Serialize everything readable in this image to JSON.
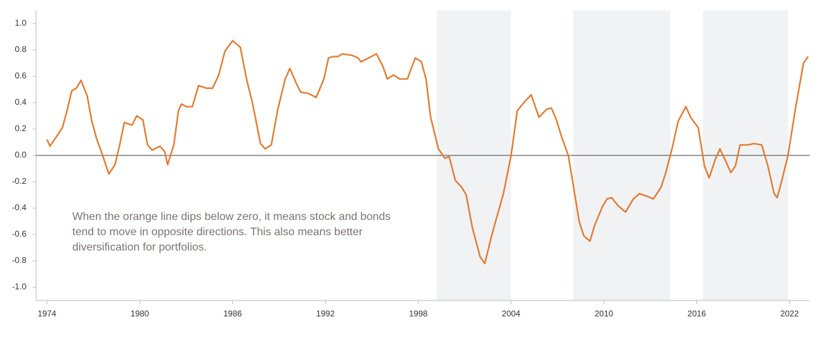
{
  "chart_data": {
    "type": "line",
    "x": [
      1974.0,
      1974.2,
      1975.0,
      1975.3,
      1975.6,
      1975.9,
      1976.2,
      1976.6,
      1976.9,
      1977.2,
      1977.6,
      1978.0,
      1978.4,
      1978.7,
      1979.0,
      1979.5,
      1979.8,
      1980.2,
      1980.5,
      1980.8,
      1981.3,
      1981.6,
      1981.8,
      1982.2,
      1982.5,
      1982.7,
      1983.0,
      1983.4,
      1983.8,
      1984.3,
      1984.7,
      1985.1,
      1985.5,
      1986.0,
      1986.5,
      1986.9,
      1987.3,
      1987.8,
      1988.1,
      1988.5,
      1988.9,
      1989.4,
      1989.7,
      1990.1,
      1990.4,
      1990.9,
      1991.4,
      1991.9,
      1992.2,
      1992.5,
      1992.8,
      1993.1,
      1993.7,
      1994.1,
      1994.3,
      1994.8,
      1995.3,
      1995.7,
      1996.0,
      1996.4,
      1996.8,
      1997.3,
      1997.8,
      1998.2,
      1998.5,
      1998.8,
      1999.3,
      1999.7,
      2000.0,
      2000.4,
      2000.8,
      2001.1,
      2001.5,
      2002.0,
      2002.3,
      2002.7,
      2003.0,
      2003.5,
      2004.0,
      2004.4,
      2004.9,
      2005.3,
      2005.8,
      2006.3,
      2006.6,
      2006.9,
      2007.3,
      2007.7,
      2008.0,
      2008.4,
      2008.7,
      2009.1,
      2009.4,
      2009.9,
      2010.2,
      2010.5,
      2010.9,
      2011.4,
      2011.9,
      2012.3,
      2012.8,
      2013.2,
      2013.7,
      2014.0,
      2014.4,
      2014.8,
      2015.3,
      2015.6,
      2016.1,
      2016.5,
      2016.8,
      2017.2,
      2017.5,
      2017.9,
      2018.2,
      2018.5,
      2018.8,
      2019.3,
      2019.7,
      2020.2,
      2020.6,
      2021.0,
      2021.2,
      2021.5,
      2021.9,
      2022.4,
      2022.9,
      2023.2
    ],
    "series": [
      {
        "color": "#e07a2f",
        "values": [
          0.12,
          0.07,
          0.21,
          0.34,
          0.49,
          0.51,
          0.57,
          0.45,
          0.26,
          0.13,
          0.0,
          -0.14,
          -0.07,
          0.08,
          0.25,
          0.23,
          0.3,
          0.27,
          0.08,
          0.04,
          0.07,
          0.03,
          -0.07,
          0.08,
          0.34,
          0.39,
          0.37,
          0.37,
          0.53,
          0.51,
          0.51,
          0.61,
          0.79,
          0.87,
          0.82,
          0.58,
          0.39,
          0.09,
          0.05,
          0.08,
          0.34,
          0.58,
          0.66,
          0.55,
          0.48,
          0.47,
          0.44,
          0.58,
          0.74,
          0.75,
          0.75,
          0.77,
          0.76,
          0.74,
          0.71,
          0.74,
          0.77,
          0.68,
          0.58,
          0.61,
          0.58,
          0.58,
          0.74,
          0.71,
          0.58,
          0.29,
          0.05,
          -0.02,
          -0.01,
          -0.19,
          -0.24,
          -0.3,
          -0.55,
          -0.77,
          -0.82,
          -0.63,
          -0.5,
          -0.29,
          0.0,
          0.34,
          0.41,
          0.46,
          0.29,
          0.35,
          0.36,
          0.28,
          0.13,
          0.0,
          -0.21,
          -0.5,
          -0.61,
          -0.65,
          -0.53,
          -0.39,
          -0.33,
          -0.32,
          -0.38,
          -0.43,
          -0.33,
          -0.29,
          -0.31,
          -0.33,
          -0.24,
          -0.13,
          0.05,
          0.26,
          0.37,
          0.29,
          0.21,
          -0.08,
          -0.17,
          -0.03,
          0.05,
          -0.05,
          -0.13,
          -0.08,
          0.08,
          0.08,
          0.09,
          0.08,
          -0.08,
          -0.29,
          -0.32,
          -0.19,
          0.0,
          0.37,
          0.7,
          0.75
        ]
      }
    ],
    "shaded_spans": [
      [
        1999.2,
        2004.0
      ],
      [
        2008.0,
        2014.3
      ],
      [
        2016.4,
        2021.9
      ]
    ],
    "shade_color": "#f1f2f4",
    "annotation": [
      "When the orange line dips below zero, it means stock and bonds",
      "tend to move in opposite directions. This also means better",
      "diversification for portfolios."
    ],
    "xlim": [
      1973.3,
      2023.3
    ],
    "ylim": [
      -1.1,
      1.1
    ],
    "xticks": [
      1974,
      1980,
      1986,
      1992,
      1998,
      2004,
      2010,
      2016,
      2022
    ],
    "yticks": [
      {
        "value": 1.0,
        "label": "1.0"
      },
      0.8,
      0.6,
      0.4,
      0.2,
      {
        "value": 0.0,
        "label": "0.0"
      },
      -0.2,
      -0.4,
      -0.6,
      -0.8,
      {
        "value": -1.0,
        "label": "-1.0"
      }
    ],
    "zero_line": true
  }
}
